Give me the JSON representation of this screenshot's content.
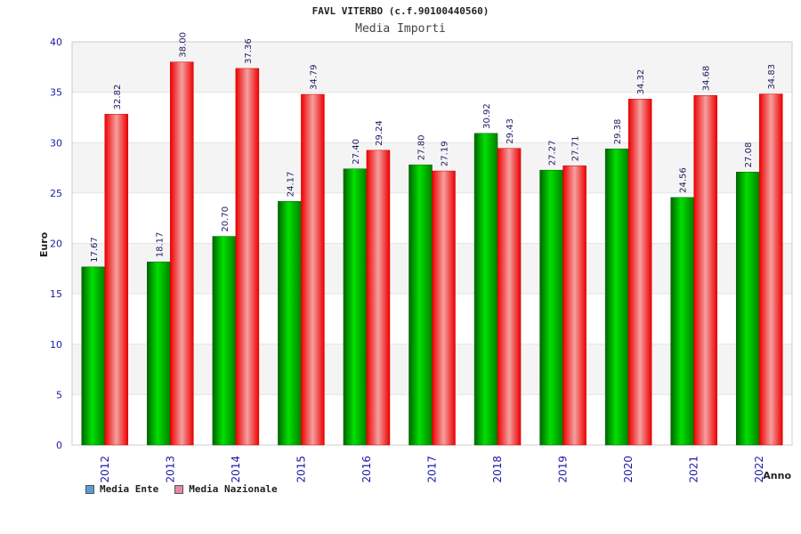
{
  "chart_data": {
    "type": "bar",
    "title": "FAVL VITERBO (c.f.90100440560)",
    "subtitle": "Media Importi",
    "xlabel": "Anno",
    "ylabel": "Euro",
    "ylim": [
      0,
      40
    ],
    "yticks": [
      0,
      5,
      10,
      15,
      20,
      25,
      30,
      35,
      40
    ],
    "grid": true,
    "legend_position": "bottom-left",
    "categories": [
      "2012",
      "2013",
      "2014",
      "2015",
      "2016",
      "2017",
      "2018",
      "2019",
      "2020",
      "2021",
      "2022"
    ],
    "series": [
      {
        "name": "Media Ente",
        "color": "#00b000",
        "legend_color": "#5b9bd5",
        "values": [
          17.67,
          18.17,
          20.7,
          24.17,
          27.4,
          27.8,
          30.92,
          27.27,
          29.38,
          24.56,
          27.08
        ],
        "labels": [
          "17.67",
          "18.17",
          "20.70",
          "24.17",
          "27.40",
          "27.80",
          "30.92",
          "27.27",
          "29.38",
          "24.56",
          "27.08"
        ]
      },
      {
        "name": "Media Nazionale",
        "color": "#ff0000",
        "legend_color": "#e08aa8",
        "values": [
          32.82,
          38.0,
          37.36,
          34.79,
          29.24,
          27.19,
          29.43,
          27.71,
          34.32,
          34.68,
          34.83
        ],
        "labels": [
          "32.82",
          "38.00",
          "37.36",
          "34.79",
          "29.24",
          "27.19",
          "29.43",
          "27.71",
          "34.32",
          "34.68",
          "34.83"
        ]
      }
    ]
  }
}
